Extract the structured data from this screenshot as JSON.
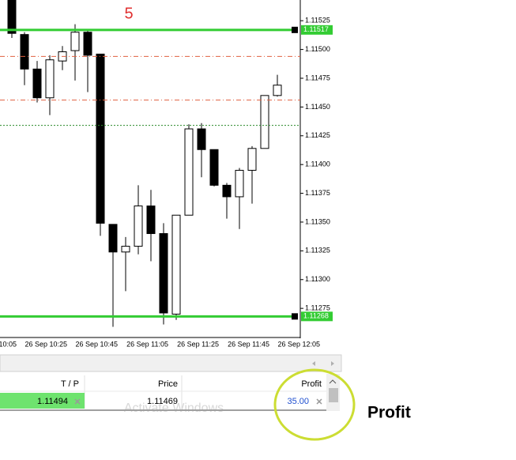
{
  "chart_data": {
    "type": "candlestick",
    "annotation": "5",
    "categories": [
      "10:05",
      null,
      null,
      null,
      "26 Sep 10:25",
      null,
      null,
      null,
      "26 Sep 10:45",
      null,
      null,
      null,
      "26 Sep 11:05",
      null,
      null,
      null,
      "26 Sep 11:25",
      null,
      null,
      null,
      "26 Sep 11:45",
      null,
      null,
      null,
      "26 Sep 12:05"
    ],
    "open": [
      null,
      null,
      null,
      1.11543,
      1.11513,
      1.11483,
      1.11458,
      1.1149,
      1.11499,
      1.11515,
      1.11496,
      1.11348,
      1.11324,
      1.11329,
      1.11364,
      1.1134,
      1.1127,
      1.11356,
      1.11431,
      1.11413,
      1.11382,
      1.11372,
      1.11395,
      1.11414,
      1.1146
    ],
    "high": [
      null,
      null,
      null,
      1.11545,
      1.11515,
      1.1149,
      1.11495,
      1.11503,
      1.11522,
      1.11517,
      1.11496,
      1.11348,
      1.11337,
      1.11382,
      1.11378,
      1.11349,
      1.11356,
      1.11435,
      1.11436,
      1.11413,
      1.11384,
      1.11397,
      1.11416,
      1.1146,
      1.11478
    ],
    "low": [
      null,
      null,
      null,
      1.1151,
      1.11469,
      1.11454,
      1.11443,
      1.11482,
      1.11473,
      1.11463,
      1.11338,
      1.11259,
      1.1129,
      1.11322,
      1.11316,
      1.11261,
      1.11265,
      1.11356,
      1.11389,
      1.11381,
      1.11353,
      1.11344,
      1.11366,
      1.11414,
      1.11459
    ],
    "close": [
      null,
      null,
      null,
      1.11514,
      1.11483,
      1.11458,
      1.11491,
      1.11498,
      1.11515,
      1.11495,
      1.11349,
      1.11324,
      1.11329,
      1.11364,
      1.1134,
      1.11271,
      1.11356,
      1.11431,
      1.11413,
      1.11382,
      1.11372,
      1.11395,
      1.11414,
      1.1146,
      1.11469
    ],
    "up_color": "#ffffff",
    "down_color": "#000000",
    "ylim": [
      1.11249,
      1.11543
    ],
    "yticks": [
      1.11525,
      {
        "value": 1.115,
        "label": "1.11500"
      },
      1.11475,
      {
        "value": 1.1145,
        "label": "1.11450"
      },
      1.11425,
      {
        "value": 1.114,
        "label": "1.11400"
      },
      1.11375,
      {
        "value": 1.1135,
        "label": "1.11350"
      },
      1.11325,
      {
        "value": 1.113,
        "label": "1.11300"
      },
      1.11275
    ],
    "price_lines": [
      {
        "value": 1.11517,
        "color": "#33cc33",
        "style": "solid",
        "tag": true
      },
      {
        "value": 1.11268,
        "color": "#33cc33",
        "style": "solid",
        "tag": true
      },
      {
        "value": 1.11494,
        "color": "#e06040",
        "style": "dashdot",
        "tag": false
      },
      {
        "value": 1.11456,
        "color": "#e06040",
        "style": "dashdot",
        "tag": false
      },
      {
        "value": 1.11434,
        "color": "#2a8a2a",
        "style": "dotted",
        "tag": false
      }
    ]
  },
  "panel": {
    "headers": [
      "T / P",
      "Price",
      "Profit"
    ],
    "row": [
      "1.11494",
      "1.11469",
      "35.00"
    ]
  },
  "watermark": "Activate Windows",
  "callout": "Profit"
}
